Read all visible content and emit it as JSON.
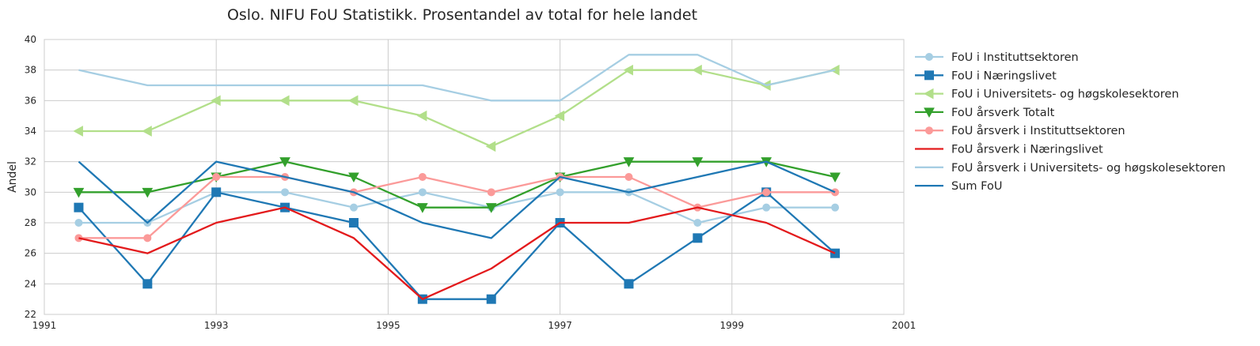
{
  "chart_data": {
    "type": "line",
    "title": "Oslo. NIFU FoU Statistikk. Prosentandel av total for hele landet",
    "xlabel": "",
    "ylabel": "Andel",
    "xlim": [
      1991,
      2001
    ],
    "ylim": [
      22,
      40
    ],
    "xticks": [
      "1991",
      "1993",
      "1995",
      "1997",
      "1999",
      "2001"
    ],
    "yticks": [
      "22",
      "24",
      "26",
      "28",
      "30",
      "32",
      "34",
      "36",
      "38",
      "40"
    ],
    "x": [
      1991.4,
      1992.2,
      1993.0,
      1993.8,
      1994.6,
      1995.4,
      1996.2,
      1997.0,
      1997.8,
      1998.6,
      1999.4,
      2000.2
    ],
    "grid": true,
    "legend_position": "outside-right",
    "series": [
      {
        "name": "FoU i Instituttsektoren",
        "color": "#a6cee3",
        "marker": "circle",
        "values": [
          28,
          28,
          30,
          30,
          29,
          30,
          29,
          30,
          30,
          28,
          29,
          29
        ]
      },
      {
        "name": "FoU i Næringslivet",
        "color": "#1f78b4",
        "marker": "square",
        "values": [
          29,
          24,
          30,
          29,
          28,
          23,
          23,
          28,
          24,
          27,
          30,
          26
        ]
      },
      {
        "name": "FoU i Universitets- og høgskolesektoren",
        "color": "#b2df8a",
        "marker": "triangle-left",
        "values": [
          34,
          34,
          36,
          36,
          36,
          35,
          33,
          35,
          38,
          38,
          37,
          38
        ]
      },
      {
        "name": "FoU årsverk Totalt",
        "color": "#33a02c",
        "marker": "triangle-down",
        "values": [
          30,
          30,
          31,
          32,
          31,
          29,
          29,
          31,
          32,
          32,
          32,
          31
        ]
      },
      {
        "name": "FoU årsverk i Instituttsektoren",
        "color": "#fb9a99",
        "marker": "circle",
        "values": [
          27,
          27,
          31,
          31,
          30,
          31,
          30,
          31,
          31,
          29,
          30,
          30
        ]
      },
      {
        "name": "FoU årsverk i Næringslivet",
        "color": "#e31a1c",
        "marker": "none",
        "values": [
          27,
          26,
          28,
          29,
          27,
          23,
          25,
          28,
          28,
          29,
          28,
          26
        ]
      },
      {
        "name": "FoU årsverk i Universitets- og høgskolesektoren",
        "color": "#a6cee3",
        "marker": "none",
        "values": [
          38,
          37,
          37,
          37,
          37,
          37,
          36,
          36,
          39,
          39,
          37,
          38
        ]
      },
      {
        "name": "Sum FoU",
        "color": "#1f78b4",
        "marker": "none",
        "values": [
          32,
          28,
          32,
          31,
          30,
          28,
          27,
          31,
          30,
          31,
          32,
          30
        ]
      }
    ]
  }
}
